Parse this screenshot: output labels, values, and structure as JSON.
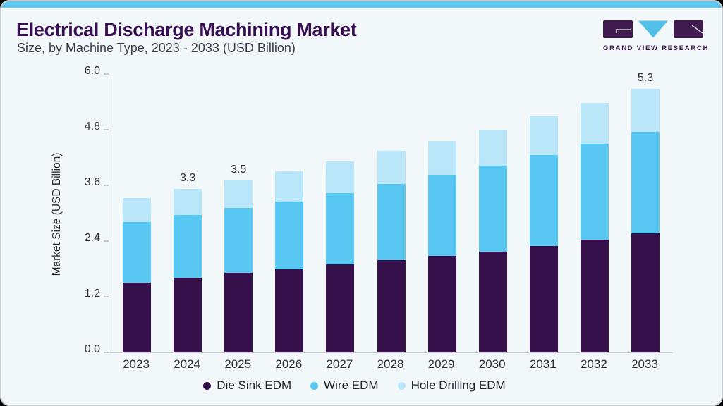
{
  "page": {
    "title": "Electrical Discharge Machining Market",
    "subtitle": "Size, by Machine Type, 2023 - 2033 (USD Billion)"
  },
  "logo": {
    "text": "GRAND VIEW RESEARCH",
    "purple": "#3f1b50",
    "blue": "#52bfe9"
  },
  "accent_strip_color": "#5cc8f1",
  "title_color": "#390f53",
  "chart_data": {
    "type": "bar",
    "stacked": true,
    "title": "Electrical Discharge Machining Market",
    "subtitle": "Size, by Machine Type, 2023 - 2033 (USD Billion)",
    "xlabel": "",
    "ylabel": "Market Size (USD Billion)",
    "ylim": [
      0,
      6.0
    ],
    "yticks": [
      0.0,
      1.2,
      2.4,
      3.6,
      4.8,
      6.0
    ],
    "grid": false,
    "legend_position": "bottom",
    "categories": [
      "2023",
      "2024",
      "2025",
      "2026",
      "2027",
      "2028",
      "2029",
      "2030",
      "2031",
      "2032",
      "2033"
    ],
    "series": [
      {
        "name": "Die Sink EDM",
        "color": "#36104a",
        "values": [
          1.42,
          1.51,
          1.61,
          1.68,
          1.78,
          1.87,
          1.96,
          2.05,
          2.16,
          2.29,
          2.42
        ]
      },
      {
        "name": "Wire EDM",
        "color": "#58c8f2",
        "values": [
          1.22,
          1.28,
          1.32,
          1.38,
          1.45,
          1.55,
          1.64,
          1.74,
          1.84,
          1.94,
          2.05
        ]
      },
      {
        "name": "Hole Drilling EDM",
        "color": "#b9e6f9",
        "values": [
          0.49,
          0.53,
          0.56,
          0.61,
          0.64,
          0.66,
          0.69,
          0.73,
          0.78,
          0.83,
          0.88
        ]
      }
    ],
    "total_labels": [
      "",
      "3.3",
      "3.5",
      "",
      "",
      "",
      "",
      "",
      "",
      "",
      "5.3"
    ]
  }
}
